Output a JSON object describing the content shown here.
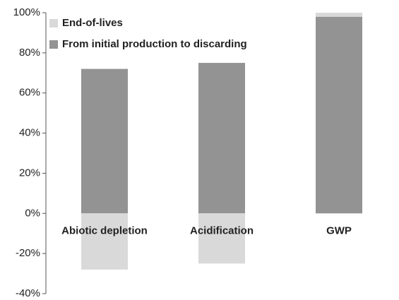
{
  "chart_data": {
    "type": "stacked_bar",
    "categories": [
      "Abiotic depletion",
      "Acidification",
      "GWP"
    ],
    "series": [
      {
        "name": "From initial production to discarding",
        "color": "#939393",
        "values": [
          72,
          75,
          98
        ]
      },
      {
        "name": "End-of-lives",
        "color": "#d9d9d9",
        "values": [
          -28,
          -25,
          2
        ]
      }
    ],
    "ylim": [
      -40,
      100
    ],
    "yticks": [
      {
        "value": -40,
        "label": "-40%"
      },
      {
        "value": -20,
        "label": "-20%"
      },
      {
        "value": 0,
        "label": "0%"
      },
      {
        "value": 20,
        "label": "20%"
      },
      {
        "value": 40,
        "label": "40%"
      },
      {
        "value": 60,
        "label": "60%"
      },
      {
        "value": 80,
        "label": "80%"
      },
      {
        "value": 100,
        "label": "100%"
      }
    ],
    "grid": false
  }
}
